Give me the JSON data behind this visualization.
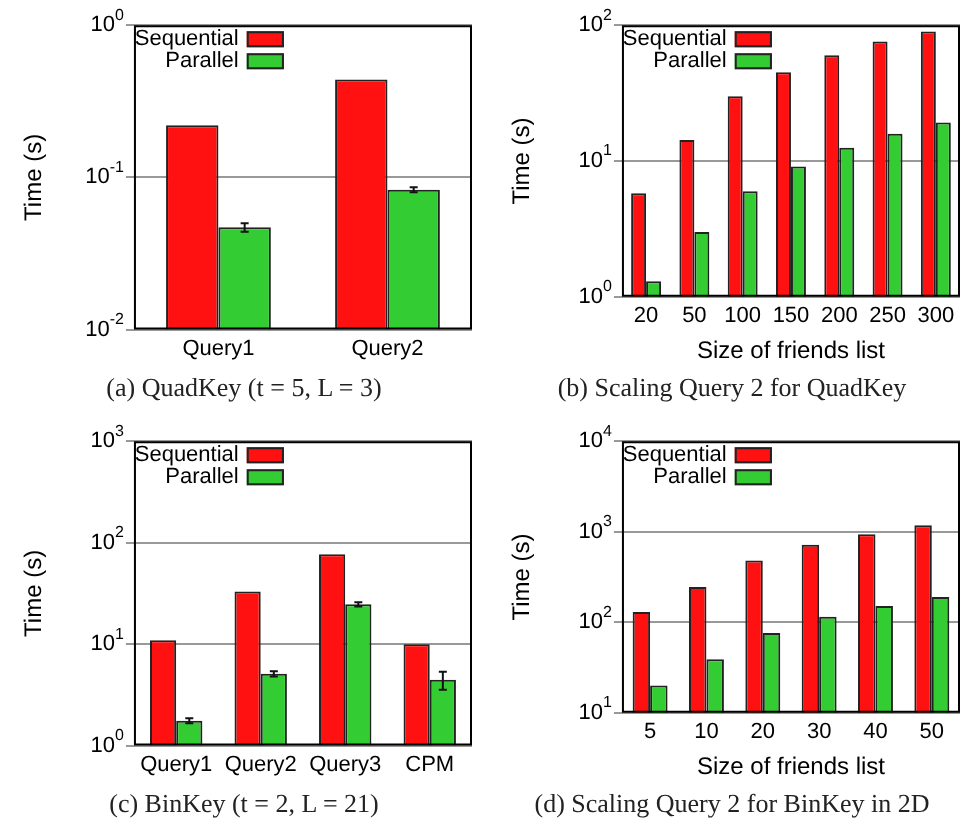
{
  "chart_data": [
    {
      "type": "bar",
      "title": "(a) QuadKey (t = 5, L = 3)",
      "ylabel": "Time (s)",
      "categories": [
        "Query1",
        "Query2"
      ],
      "log": true,
      "grid": "y",
      "legend": "top",
      "ylim": [
        0.01,
        1
      ],
      "yticks": [
        {
          "value": 0.01,
          "label": "10$^{-2}$"
        },
        {
          "value": 0.1,
          "label": "10$^{-1}$"
        },
        {
          "value": 1,
          "label": "10$^{0}$"
        }
      ],
      "series": [
        {
          "name": "Sequential",
          "color": "#ff1111",
          "values": [
            0.22,
            0.44
          ]
        },
        {
          "name": "Parallel",
          "color": "#33cc33",
          "values": [
            0.047,
            0.083
          ],
          "errors": [
            0.003,
            0.003
          ]
        }
      ]
    },
    {
      "type": "bar",
      "title": "(b) Scaling Query 2 for QuadKey",
      "ylabel": "Time (s)",
      "xlabel": "Size of friends list",
      "categories": [
        "20",
        "50",
        "100",
        "150",
        "200",
        "250",
        "300"
      ],
      "log": true,
      "grid": "y",
      "legend": "top",
      "ylim": [
        1,
        100
      ],
      "yticks": [
        {
          "value": 1,
          "label": "10$^{0}$"
        },
        {
          "value": 10,
          "label": "10$^{1}$"
        },
        {
          "value": 100,
          "label": "10$^{2}$"
        }
      ],
      "series": [
        {
          "name": "Sequential",
          "color": "#ff1111",
          "values": [
            5.8,
            14.3,
            30,
            45,
            60,
            76,
            90
          ]
        },
        {
          "name": "Parallel",
          "color": "#33cc33",
          "values": [
            1.3,
            3.0,
            6.0,
            9.1,
            12.5,
            15.9,
            19.2
          ]
        }
      ]
    },
    {
      "type": "bar",
      "title": "(c) BinKey (t = 2, L = 21)",
      "ylabel": "Time (s)",
      "categories": [
        "Query1",
        "Query2",
        "Query3",
        "CPM"
      ],
      "log": true,
      "grid": "y",
      "legend": "top",
      "ylim": [
        1,
        1000
      ],
      "yticks": [
        {
          "value": 1,
          "label": "10$^{0}$"
        },
        {
          "value": 10,
          "label": "10$^{1}$"
        },
        {
          "value": 100,
          "label": "10$^{2}$"
        },
        {
          "value": 1000,
          "label": "10$^{3}$"
        }
      ],
      "series": [
        {
          "name": "Sequential",
          "color": "#ff1111",
          "values": [
            10.9,
            33,
            77,
            10
          ]
        },
        {
          "name": "Parallel",
          "color": "#33cc33",
          "values": [
            1.76,
            5.1,
            24.7,
            4.45
          ],
          "errors": [
            0.1,
            0.3,
            1.2,
            0.9
          ]
        }
      ]
    },
    {
      "type": "bar",
      "title": "(d) Scaling Query 2 for BinKey in 2D",
      "ylabel": "Time (s)",
      "xlabel": "Size of friends list",
      "categories": [
        "5",
        "10",
        "20",
        "30",
        "40",
        "50"
      ],
      "log": true,
      "grid": "y",
      "legend": "top",
      "ylim": [
        10,
        10000
      ],
      "yticks": [
        {
          "value": 10,
          "label": "10$^{1}$"
        },
        {
          "value": 100,
          "label": "10$^{2}$"
        },
        {
          "value": 1000,
          "label": "10$^{3}$"
        },
        {
          "value": 10000,
          "label": "10$^{4}$"
        }
      ],
      "series": [
        {
          "name": "Sequential",
          "color": "#ff1111",
          "values": [
            130,
            245,
            480,
            720,
            940,
            1180
          ]
        },
        {
          "name": "Parallel",
          "color": "#33cc33",
          "values": [
            20,
            39,
            76,
            115,
            151,
            190
          ]
        }
      ]
    }
  ]
}
